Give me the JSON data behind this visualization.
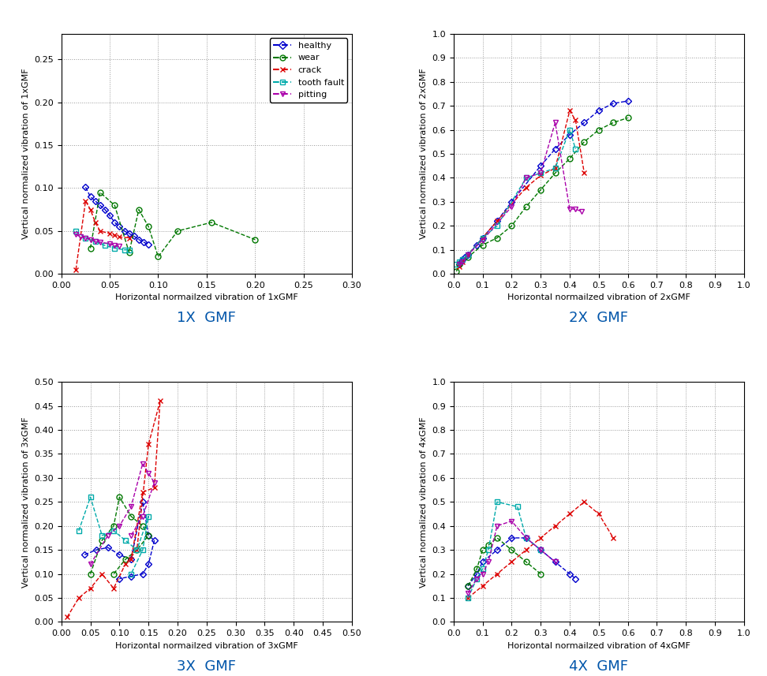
{
  "subplots": [
    {
      "title": "1X  GMF",
      "xlabel": "Horizontal normailzed vibration of 1xGMF",
      "ylabel": "Vertical normalized vibration of 1xGMF",
      "xlim": [
        0,
        0.3
      ],
      "ylim": [
        0,
        0.28
      ],
      "xticks": [
        0,
        0.05,
        0.1,
        0.15,
        0.2,
        0.25,
        0.3
      ],
      "yticks": [
        0,
        0.05,
        0.1,
        0.15,
        0.2,
        0.25
      ]
    },
    {
      "title": "2X  GMF",
      "xlabel": "Horizontal normailzed vibration of 2xGMF",
      "ylabel": "Vertical normalized vibration of 2xGMF",
      "xlim": [
        0,
        1
      ],
      "ylim": [
        0,
        1
      ],
      "xticks": [
        0,
        0.1,
        0.2,
        0.3,
        0.4,
        0.5,
        0.6,
        0.7,
        0.8,
        0.9,
        1
      ],
      "yticks": [
        0,
        0.1,
        0.2,
        0.3,
        0.4,
        0.5,
        0.6,
        0.7,
        0.8,
        0.9,
        1
      ]
    },
    {
      "title": "3X  GMF",
      "xlabel": "Horizontal normailzed vibration of 3xGMF",
      "ylabel": "Vertical normalized vibration of 3xGMF",
      "xlim": [
        0,
        0.5
      ],
      "ylim": [
        0,
        0.5
      ],
      "xticks": [
        0,
        0.05,
        0.1,
        0.15,
        0.2,
        0.25,
        0.3,
        0.35,
        0.4,
        0.45,
        0.5
      ],
      "yticks": [
        0,
        0.05,
        0.1,
        0.15,
        0.2,
        0.25,
        0.3,
        0.35,
        0.4,
        0.45,
        0.5
      ]
    },
    {
      "title": "4X  GMF",
      "xlabel": "Horizontal normailzed vibration of 4xGMF",
      "ylabel": "Vertical normalized vibration of 4xGMF",
      "xlim": [
        0,
        1.0
      ],
      "ylim": [
        0,
        1
      ],
      "xticks": [
        0,
        0.1,
        0.2,
        0.3,
        0.4,
        0.5,
        0.6,
        0.7,
        0.8,
        0.9,
        1.0
      ],
      "yticks": [
        0,
        0.1,
        0.2,
        0.3,
        0.4,
        0.5,
        0.6,
        0.7,
        0.8,
        0.9,
        1
      ]
    }
  ],
  "series_config": {
    "healthy": {
      "color": "#0000cc",
      "linestyle": "--",
      "marker": "D",
      "ms": 4,
      "lw": 1.0
    },
    "wear": {
      "color": "#007700",
      "linestyle": "--",
      "marker": "o",
      "ms": 5,
      "lw": 1.0
    },
    "crack": {
      "color": "#dd0000",
      "linestyle": "--",
      "marker": "x",
      "ms": 5,
      "lw": 1.0
    },
    "tooth_fault": {
      "color": "#00aaaa",
      "linestyle": "--",
      "marker": "s",
      "ms": 4,
      "lw": 1.0
    },
    "pitting": {
      "color": "#aa00aa",
      "linestyle": "--",
      "marker": "v",
      "ms": 5,
      "lw": 1.0
    }
  },
  "panel_data": {
    "p1": {
      "healthy": {
        "x": [
          0.025,
          0.03,
          0.035,
          0.04,
          0.045,
          0.05,
          0.055,
          0.06,
          0.065,
          0.07,
          0.075,
          0.08,
          0.085,
          0.09
        ],
        "y": [
          0.101,
          0.09,
          0.085,
          0.08,
          0.075,
          0.068,
          0.06,
          0.055,
          0.05,
          0.047,
          0.044,
          0.04,
          0.037,
          0.034
        ]
      },
      "wear": {
        "x": [
          0.03,
          0.04,
          0.055,
          0.07,
          0.08,
          0.09,
          0.1,
          0.12,
          0.155,
          0.2
        ],
        "y": [
          0.03,
          0.095,
          0.08,
          0.025,
          0.075,
          0.055,
          0.02,
          0.05,
          0.06,
          0.04
        ]
      },
      "crack": {
        "x": [
          0.015,
          0.025,
          0.03,
          0.035,
          0.04,
          0.05,
          0.055,
          0.06,
          0.07
        ],
        "y": [
          0.005,
          0.085,
          0.075,
          0.06,
          0.05,
          0.047,
          0.045,
          0.043,
          0.042
        ]
      },
      "tooth_fault": {
        "x": [
          0.015,
          0.025,
          0.035,
          0.045,
          0.055,
          0.065,
          0.07
        ],
        "y": [
          0.05,
          0.042,
          0.038,
          0.033,
          0.03,
          0.028,
          0.028
        ]
      },
      "pitting": {
        "x": [
          0.015,
          0.02,
          0.025,
          0.03,
          0.035,
          0.04,
          0.05,
          0.055,
          0.06
        ],
        "y": [
          0.046,
          0.043,
          0.042,
          0.04,
          0.038,
          0.037,
          0.035,
          0.033,
          0.032
        ]
      }
    },
    "p2": {
      "healthy": {
        "x": [
          0.02,
          0.025,
          0.03,
          0.04,
          0.05,
          0.08,
          0.1,
          0.15,
          0.2,
          0.3,
          0.35,
          0.4,
          0.45,
          0.5,
          0.55,
          0.6
        ],
        "y": [
          0.04,
          0.05,
          0.06,
          0.07,
          0.08,
          0.12,
          0.15,
          0.22,
          0.3,
          0.45,
          0.52,
          0.58,
          0.63,
          0.68,
          0.71,
          0.72
        ]
      },
      "wear": {
        "x": [
          0.01,
          0.02,
          0.05,
          0.1,
          0.15,
          0.2,
          0.25,
          0.3,
          0.35,
          0.4,
          0.45,
          0.5,
          0.55,
          0.6
        ],
        "y": [
          0.01,
          0.04,
          0.07,
          0.12,
          0.15,
          0.2,
          0.28,
          0.35,
          0.42,
          0.48,
          0.55,
          0.6,
          0.63,
          0.65
        ]
      },
      "crack": {
        "x": [
          0.02,
          0.03,
          0.05,
          0.1,
          0.15,
          0.25,
          0.3,
          0.35,
          0.4,
          0.42,
          0.45
        ],
        "y": [
          0.03,
          0.05,
          0.08,
          0.15,
          0.22,
          0.36,
          0.41,
          0.44,
          0.68,
          0.64,
          0.42
        ]
      },
      "tooth_fault": {
        "x": [
          0.01,
          0.02,
          0.03,
          0.05,
          0.1,
          0.15,
          0.25,
          0.3,
          0.35,
          0.4,
          0.42
        ],
        "y": [
          0.04,
          0.05,
          0.06,
          0.08,
          0.15,
          0.2,
          0.4,
          0.42,
          0.44,
          0.6,
          0.52
        ]
      },
      "pitting": {
        "x": [
          0.02,
          0.03,
          0.05,
          0.1,
          0.2,
          0.25,
          0.3,
          0.35,
          0.4,
          0.42,
          0.44
        ],
        "y": [
          0.04,
          0.05,
          0.08,
          0.14,
          0.28,
          0.4,
          0.42,
          0.63,
          0.27,
          0.27,
          0.26
        ]
      }
    },
    "p3": {
      "healthy": {
        "x": [
          0.04,
          0.06,
          0.08,
          0.1,
          0.12,
          0.14,
          0.15,
          0.16,
          0.15,
          0.14,
          0.12,
          0.1
        ],
        "y": [
          0.14,
          0.15,
          0.155,
          0.14,
          0.13,
          0.25,
          0.18,
          0.17,
          0.12,
          0.1,
          0.095,
          0.09
        ]
      },
      "wear": {
        "x": [
          0.05,
          0.07,
          0.09,
          0.1,
          0.12,
          0.14,
          0.15,
          0.13,
          0.11,
          0.09
        ],
        "y": [
          0.1,
          0.17,
          0.2,
          0.26,
          0.22,
          0.2,
          0.18,
          0.15,
          0.13,
          0.1
        ]
      },
      "crack": {
        "x": [
          0.01,
          0.03,
          0.05,
          0.07,
          0.09,
          0.11,
          0.13,
          0.15,
          0.17,
          0.16,
          0.14,
          0.12
        ],
        "y": [
          0.01,
          0.05,
          0.07,
          0.1,
          0.07,
          0.12,
          0.15,
          0.37,
          0.46,
          0.28,
          0.27,
          0.13
        ]
      },
      "tooth_fault": {
        "x": [
          0.03,
          0.05,
          0.07,
          0.09,
          0.11,
          0.13,
          0.15,
          0.14,
          0.12
        ],
        "y": [
          0.19,
          0.26,
          0.18,
          0.19,
          0.17,
          0.15,
          0.22,
          0.15,
          0.1
        ]
      },
      "pitting": {
        "x": [
          0.05,
          0.08,
          0.1,
          0.12,
          0.14,
          0.15,
          0.16,
          0.14,
          0.12
        ],
        "y": [
          0.12,
          0.18,
          0.2,
          0.24,
          0.33,
          0.31,
          0.29,
          0.22,
          0.18
        ]
      }
    },
    "p4": {
      "healthy": {
        "x": [
          0.05,
          0.08,
          0.1,
          0.15,
          0.2,
          0.25,
          0.3,
          0.35,
          0.4,
          0.42
        ],
        "y": [
          0.15,
          0.2,
          0.25,
          0.3,
          0.35,
          0.35,
          0.3,
          0.25,
          0.2,
          0.18
        ]
      },
      "wear": {
        "x": [
          0.05,
          0.08,
          0.1,
          0.12,
          0.15,
          0.2,
          0.25,
          0.3
        ],
        "y": [
          0.15,
          0.22,
          0.3,
          0.32,
          0.35,
          0.3,
          0.25,
          0.2
        ]
      },
      "crack": {
        "x": [
          0.05,
          0.1,
          0.15,
          0.2,
          0.25,
          0.3,
          0.35,
          0.4,
          0.45,
          0.5,
          0.55
        ],
        "y": [
          0.1,
          0.15,
          0.2,
          0.25,
          0.3,
          0.35,
          0.4,
          0.45,
          0.5,
          0.45,
          0.35
        ]
      },
      "tooth_fault": {
        "x": [
          0.05,
          0.08,
          0.1,
          0.12,
          0.15,
          0.22,
          0.25,
          0.3
        ],
        "y": [
          0.1,
          0.18,
          0.22,
          0.3,
          0.5,
          0.48,
          0.35,
          0.3
        ]
      },
      "pitting": {
        "x": [
          0.05,
          0.08,
          0.1,
          0.12,
          0.15,
          0.2,
          0.25,
          0.3,
          0.35
        ],
        "y": [
          0.12,
          0.18,
          0.2,
          0.25,
          0.4,
          0.42,
          0.35,
          0.3,
          0.25
        ]
      }
    }
  },
  "background_color": "#ffffff",
  "title_color": "#0055aa",
  "title_fontsize": 13
}
